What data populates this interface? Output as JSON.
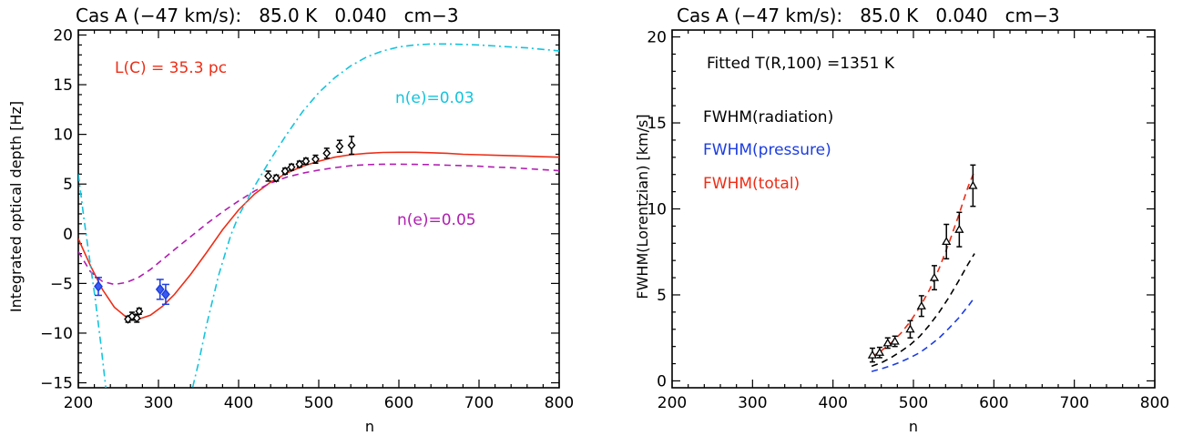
{
  "chart_data": [
    {
      "type": "line",
      "title": "Cas A (−47 km/s):   85.0 K   0.040   cm−3",
      "xlabel": "n",
      "ylabel": "Integrated optical depth [Hz]",
      "xlim": [
        200,
        800
      ],
      "ylim": [
        -15.5,
        20.5
      ],
      "xticks": [
        "200",
        "300",
        "400",
        "500",
        "600",
        "700",
        "800"
      ],
      "yticks": [
        "−15",
        "−10",
        "−5",
        "0",
        "5",
        "10",
        "15",
        "20"
      ],
      "annotations": [
        {
          "text": "L(C) = 35.3 pc",
          "color": "#ee2d16"
        },
        {
          "text": "n(e)=0.03",
          "color": "#14c4dd"
        },
        {
          "text": "n(e)=0.05",
          "color": "#b01eb0"
        }
      ],
      "series": [
        {
          "style": "solid",
          "color": "#ee2d16",
          "x": [
            200,
            215,
            230,
            245,
            260,
            275,
            290,
            305,
            320,
            340,
            360,
            380,
            400,
            420,
            440,
            460,
            480,
            500,
            520,
            540,
            560,
            580,
            600,
            620,
            640,
            660,
            680,
            700,
            720,
            740,
            760,
            780,
            800
          ],
          "y": [
            -0.5,
            -3.2,
            -5.6,
            -7.4,
            -8.4,
            -8.6,
            -8.2,
            -7.3,
            -6.1,
            -4.1,
            -1.9,
            0.4,
            2.4,
            4.0,
            5.2,
            6.1,
            6.8,
            7.3,
            7.7,
            7.95,
            8.1,
            8.18,
            8.2,
            8.2,
            8.15,
            8.1,
            8.0,
            7.95,
            7.9,
            7.85,
            7.8,
            7.75,
            7.7
          ]
        },
        {
          "style": "dashed",
          "color": "#b01eb0",
          "x": [
            200,
            215,
            230,
            245,
            260,
            275,
            290,
            305,
            320,
            340,
            360,
            380,
            400,
            420,
            440,
            460,
            480,
            500,
            520,
            540,
            560,
            580,
            600,
            620,
            640,
            660,
            680,
            700,
            720,
            740,
            760,
            780,
            800
          ],
          "y": [
            -1.8,
            -3.8,
            -4.8,
            -5.1,
            -4.9,
            -4.4,
            -3.6,
            -2.6,
            -1.6,
            -0.3,
            1.0,
            2.2,
            3.3,
            4.3,
            5.1,
            5.7,
            6.1,
            6.4,
            6.65,
            6.85,
            6.95,
            7.0,
            7.0,
            6.98,
            6.95,
            6.9,
            6.85,
            6.8,
            6.7,
            6.65,
            6.55,
            6.45,
            6.35
          ]
        },
        {
          "style": "dash-dot",
          "color": "#14c4dd",
          "x": [
            200,
            207,
            214,
            221,
            228,
            235,
            341,
            350,
            360,
            375,
            390,
            400,
            420,
            440,
            460,
            480,
            500,
            520,
            540,
            560,
            580,
            600,
            620,
            640,
            660,
            680,
            700,
            720,
            740,
            760,
            780,
            800
          ],
          "y": [
            6.0,
            1.5,
            -2.5,
            -6.5,
            -11.0,
            -16.0,
            -16.0,
            -13.0,
            -9.2,
            -4.2,
            -0.2,
            1.8,
            4.8,
            7.5,
            10.0,
            12.3,
            14.2,
            15.7,
            16.9,
            17.8,
            18.4,
            18.8,
            19.0,
            19.1,
            19.1,
            19.05,
            19.0,
            18.9,
            18.8,
            18.7,
            18.55,
            18.4
          ]
        }
      ],
      "points_blue": [
        {
          "x": 225,
          "y": -5.3,
          "err": 0.9
        },
        {
          "x": 302,
          "y": -5.6,
          "err": 1.0
        },
        {
          "x": 309,
          "y": -6.1,
          "err": 1.0
        }
      ],
      "points_black": [
        {
          "x": 262,
          "y": -8.6,
          "err": 0.3
        },
        {
          "x": 267,
          "y": -8.3,
          "err": 0.4
        },
        {
          "x": 273,
          "y": -8.5,
          "err": 0.4
        },
        {
          "x": 276,
          "y": -7.8,
          "err": 0.3
        },
        {
          "x": 437,
          "y": 5.8,
          "err": 0.5
        },
        {
          "x": 447,
          "y": 5.6,
          "err": 0.3
        },
        {
          "x": 458,
          "y": 6.3,
          "err": 0.3
        },
        {
          "x": 466,
          "y": 6.7,
          "err": 0.3
        },
        {
          "x": 476,
          "y": 7.0,
          "err": 0.3
        },
        {
          "x": 484,
          "y": 7.3,
          "err": 0.3
        },
        {
          "x": 496,
          "y": 7.5,
          "err": 0.4
        },
        {
          "x": 510,
          "y": 8.1,
          "err": 0.5
        },
        {
          "x": 526,
          "y": 8.8,
          "err": 0.6
        },
        {
          "x": 541,
          "y": 8.9,
          "err": 0.9
        }
      ]
    },
    {
      "type": "line",
      "title": "Cas A (−47 km/s):   85.0 K   0.040   cm−3",
      "xlabel": "n",
      "ylabel": "FWHM(Lorentzian) [km/s]",
      "xlim": [
        200,
        800
      ],
      "ylim": [
        -0.4,
        20.4
      ],
      "xticks": [
        "200",
        "300",
        "400",
        "500",
        "600",
        "700",
        "800"
      ],
      "yticks": [
        "0",
        "5",
        "10",
        "15",
        "20"
      ],
      "annotations": [
        {
          "text": "Fitted T(R,100) =1351 K",
          "color": "#000000"
        },
        {
          "text": "FWHM(radiation)",
          "color": "#000000"
        },
        {
          "text": "FWHM(pressure)",
          "color": "#1c3de0"
        },
        {
          "text": "FWHM(total)",
          "color": "#ee2d16"
        }
      ],
      "series": [
        {
          "style": "dashed",
          "color": "#ee2d16",
          "x": [
            448,
            460,
            472,
            484,
            496,
            508,
            520,
            532,
            544,
            556,
            568,
            576
          ],
          "y": [
            1.4,
            1.75,
            2.2,
            2.75,
            3.45,
            4.3,
            5.3,
            6.55,
            8.0,
            9.6,
            11.3,
            12.2
          ]
        },
        {
          "style": "dashed",
          "color": "#000000",
          "x": [
            448,
            460,
            472,
            484,
            496,
            508,
            520,
            532,
            544,
            556,
            568,
            576
          ],
          "y": [
            0.85,
            1.05,
            1.35,
            1.7,
            2.1,
            2.6,
            3.25,
            4.0,
            4.85,
            5.8,
            6.8,
            7.4
          ]
        },
        {
          "style": "dashed",
          "color": "#1c3de0",
          "x": [
            448,
            460,
            472,
            484,
            496,
            508,
            520,
            532,
            544,
            556,
            568,
            576
          ],
          "y": [
            0.55,
            0.7,
            0.88,
            1.1,
            1.35,
            1.65,
            2.05,
            2.5,
            3.05,
            3.65,
            4.35,
            4.85
          ]
        }
      ],
      "points": [
        {
          "x": 449,
          "y": 1.5,
          "err": 0.4
        },
        {
          "x": 458,
          "y": 1.65,
          "err": 0.3
        },
        {
          "x": 468,
          "y": 2.2,
          "err": 0.3
        },
        {
          "x": 477,
          "y": 2.3,
          "err": 0.3
        },
        {
          "x": 496,
          "y": 3.0,
          "err": 0.5
        },
        {
          "x": 510,
          "y": 4.35,
          "err": 0.6
        },
        {
          "x": 526,
          "y": 6.0,
          "err": 0.7
        },
        {
          "x": 541,
          "y": 8.1,
          "err": 1.0
        },
        {
          "x": 557,
          "y": 8.8,
          "err": 1.0
        },
        {
          "x": 574,
          "y": 11.35,
          "err": 1.2
        }
      ]
    }
  ]
}
